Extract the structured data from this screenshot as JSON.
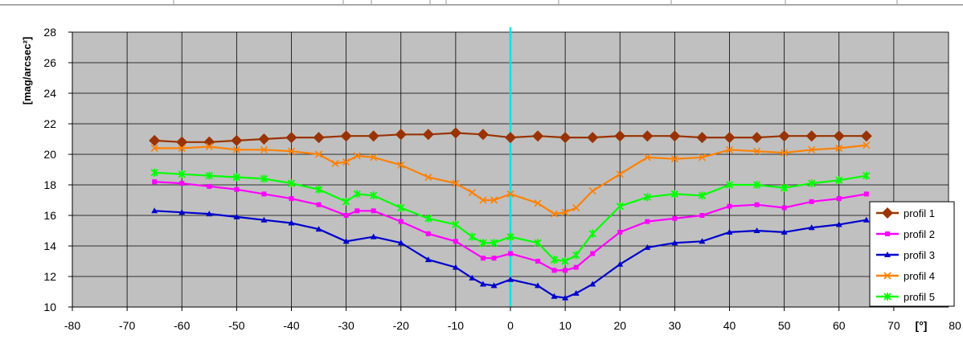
{
  "chart_data": {
    "type": "line",
    "title": "",
    "xlabel": "[°]",
    "ylabel": "[mag/arcsec²]",
    "xlim": [
      -80,
      80
    ],
    "ylim": [
      10,
      28
    ],
    "x_ticks": [
      "-80",
      "-70",
      "-60",
      "-50",
      "-40",
      "-30",
      "-20",
      "-10",
      "0",
      "10",
      "20",
      "30",
      "40",
      "50",
      "60",
      "70"
    ],
    "x_unit_label": "[°]",
    "x_last_tick": "80",
    "y_ticks": [
      "10",
      "12",
      "14",
      "16",
      "18",
      "20",
      "22",
      "24",
      "26",
      "28"
    ],
    "grid": true,
    "plot_background": "#c0c0c0",
    "reference_line": {
      "x": 0,
      "color": "#00e5e5"
    },
    "legend_position": "lower-right",
    "series": [
      {
        "name": "profil 1",
        "color": "#993300",
        "marker": "diamond",
        "x": [
          -65,
          -60,
          -55,
          -50,
          -45,
          -40,
          -35,
          -30,
          -25,
          -20,
          -15,
          -10,
          -5,
          0,
          5,
          10,
          15,
          20,
          25,
          30,
          35,
          40,
          45,
          50,
          55,
          60,
          65
        ],
        "y": [
          20.9,
          20.8,
          20.8,
          20.9,
          21.0,
          21.1,
          21.1,
          21.2,
          21.2,
          21.3,
          21.3,
          21.4,
          21.3,
          21.1,
          21.2,
          21.1,
          21.1,
          21.2,
          21.2,
          21.2,
          21.1,
          21.1,
          21.1,
          21.2,
          21.2,
          21.2,
          21.2
        ]
      },
      {
        "name": "profil 2",
        "color": "#ff00ff",
        "marker": "square",
        "x": [
          -65,
          -60,
          -55,
          -50,
          -45,
          -40,
          -35,
          -30,
          -28,
          -25,
          -20,
          -15,
          -10,
          -5,
          -3,
          0,
          5,
          8,
          10,
          12,
          15,
          20,
          25,
          30,
          35,
          40,
          45,
          50,
          55,
          60,
          65
        ],
        "y": [
          18.2,
          18.1,
          17.9,
          17.7,
          17.4,
          17.1,
          16.7,
          16.0,
          16.3,
          16.3,
          15.6,
          14.8,
          14.3,
          13.2,
          13.2,
          13.5,
          13.0,
          12.4,
          12.4,
          12.6,
          13.5,
          14.9,
          15.6,
          15.8,
          16.0,
          16.6,
          16.7,
          16.5,
          16.9,
          17.1,
          17.4
        ]
      },
      {
        "name": "profil 3",
        "color": "#0000cc",
        "marker": "triangle",
        "x": [
          -65,
          -60,
          -55,
          -50,
          -45,
          -40,
          -35,
          -30,
          -25,
          -20,
          -15,
          -10,
          -7,
          -5,
          -3,
          0,
          5,
          8,
          10,
          12,
          15,
          20,
          25,
          30,
          35,
          40,
          45,
          50,
          55,
          60,
          65
        ],
        "y": [
          16.3,
          16.2,
          16.1,
          15.9,
          15.7,
          15.5,
          15.1,
          14.3,
          14.6,
          14.2,
          13.1,
          12.6,
          11.9,
          11.5,
          11.4,
          11.8,
          11.4,
          10.7,
          10.6,
          10.9,
          11.5,
          12.8,
          13.9,
          14.2,
          14.3,
          14.9,
          15.0,
          14.9,
          15.2,
          15.4,
          15.7
        ]
      },
      {
        "name": "profil 4",
        "color": "#ff8000",
        "marker": "x",
        "x": [
          -65,
          -60,
          -55,
          -50,
          -45,
          -40,
          -35,
          -32,
          -30,
          -28,
          -25,
          -20,
          -15,
          -10,
          -7,
          -5,
          -3,
          0,
          5,
          8,
          10,
          12,
          15,
          20,
          25,
          30,
          35,
          40,
          45,
          50,
          55,
          60,
          65
        ],
        "y": [
          20.4,
          20.4,
          20.5,
          20.3,
          20.3,
          20.2,
          20.0,
          19.4,
          19.5,
          19.9,
          19.8,
          19.3,
          18.5,
          18.1,
          17.5,
          17.0,
          17.0,
          17.4,
          16.8,
          16.1,
          16.2,
          16.5,
          17.6,
          18.7,
          19.8,
          19.7,
          19.8,
          20.3,
          20.2,
          20.1,
          20.3,
          20.4,
          20.6
        ]
      },
      {
        "name": "profil 5",
        "color": "#00ff00",
        "marker": "star",
        "x": [
          -65,
          -60,
          -55,
          -50,
          -45,
          -40,
          -35,
          -30,
          -28,
          -25,
          -20,
          -15,
          -10,
          -7,
          -5,
          -3,
          0,
          5,
          8,
          10,
          12,
          15,
          20,
          25,
          30,
          35,
          40,
          45,
          50,
          55,
          60,
          65
        ],
        "y": [
          18.8,
          18.7,
          18.6,
          18.5,
          18.4,
          18.1,
          17.7,
          16.9,
          17.4,
          17.3,
          16.5,
          15.8,
          15.4,
          14.6,
          14.2,
          14.2,
          14.6,
          14.2,
          13.1,
          13.0,
          13.4,
          14.8,
          16.6,
          17.2,
          17.4,
          17.3,
          18.0,
          18.0,
          17.8,
          18.1,
          18.3,
          18.6
        ]
      }
    ]
  }
}
